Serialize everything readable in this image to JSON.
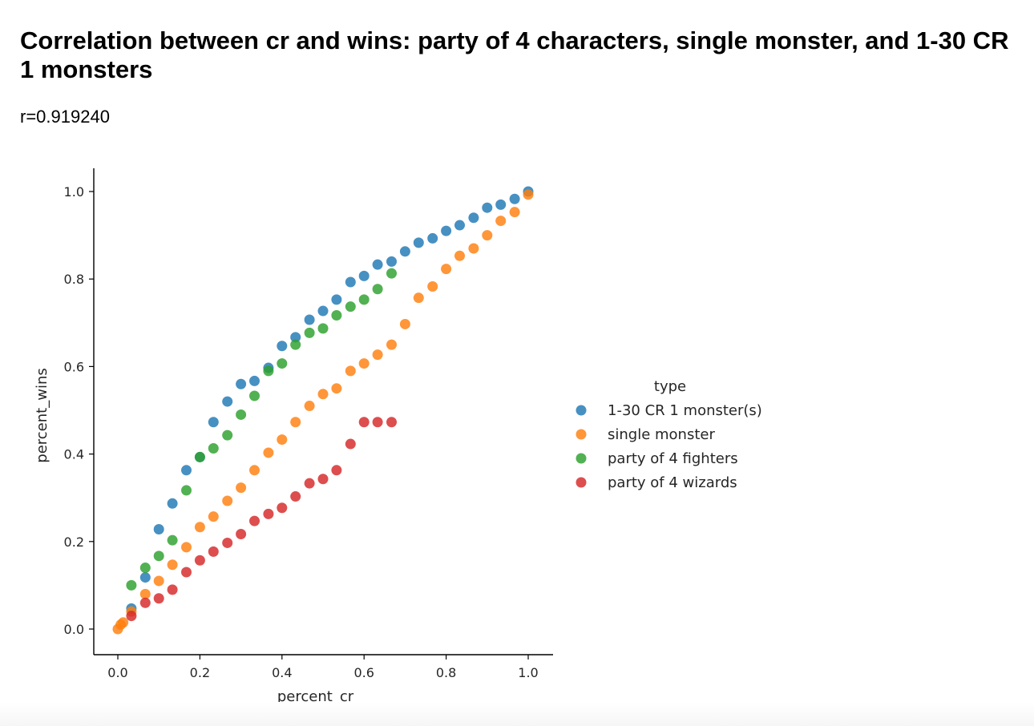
{
  "page": {
    "title": "Correlation between cr and wins: party of 4 characters, single monster, and 1-30 CR 1 monsters",
    "subtitle": "r=0.919240"
  },
  "chart_data": {
    "type": "scatter",
    "title": "",
    "xlabel": "percent_cr",
    "ylabel": "percent_wins",
    "xlim": [
      -0.06,
      1.06
    ],
    "ylim": [
      -0.06,
      1.05
    ],
    "xticks": [
      0.0,
      0.2,
      0.4,
      0.6,
      0.8,
      1.0
    ],
    "yticks": [
      0.0,
      0.2,
      0.4,
      0.6,
      0.8,
      1.0
    ],
    "tick_labels_x": [
      "0.0",
      "0.2",
      "0.4",
      "0.6",
      "0.8",
      "1.0"
    ],
    "tick_labels_y": [
      "0.0",
      "0.2",
      "0.4",
      "0.6",
      "0.8",
      "1.0"
    ],
    "grid": false,
    "legend_title": "type",
    "legend_position": "right",
    "series": [
      {
        "name": "1-30 CR 1 monster(s)",
        "color": "#1f77b4",
        "points": [
          [
            0.033,
            0.047
          ],
          [
            0.067,
            0.118
          ],
          [
            0.1,
            0.228
          ],
          [
            0.133,
            0.287
          ],
          [
            0.167,
            0.363
          ],
          [
            0.2,
            0.393
          ],
          [
            0.233,
            0.473
          ],
          [
            0.267,
            0.52
          ],
          [
            0.3,
            0.56
          ],
          [
            0.333,
            0.567
          ],
          [
            0.367,
            0.597
          ],
          [
            0.4,
            0.647
          ],
          [
            0.433,
            0.667
          ],
          [
            0.467,
            0.707
          ],
          [
            0.5,
            0.727
          ],
          [
            0.533,
            0.753
          ],
          [
            0.567,
            0.793
          ],
          [
            0.6,
            0.807
          ],
          [
            0.633,
            0.833
          ],
          [
            0.667,
            0.84
          ],
          [
            0.7,
            0.863
          ],
          [
            0.733,
            0.883
          ],
          [
            0.767,
            0.893
          ],
          [
            0.8,
            0.91
          ],
          [
            0.833,
            0.923
          ],
          [
            0.867,
            0.94
          ],
          [
            0.9,
            0.963
          ],
          [
            0.933,
            0.97
          ],
          [
            0.967,
            0.983
          ],
          [
            1.0,
            1.0
          ]
        ]
      },
      {
        "name": "single monster",
        "color": "#ff7f0e",
        "points": [
          [
            0.0,
            0.0
          ],
          [
            0.007,
            0.01
          ],
          [
            0.013,
            0.015
          ],
          [
            0.033,
            0.04
          ],
          [
            0.067,
            0.08
          ],
          [
            0.1,
            0.11
          ],
          [
            0.133,
            0.147
          ],
          [
            0.167,
            0.187
          ],
          [
            0.2,
            0.233
          ],
          [
            0.233,
            0.257
          ],
          [
            0.267,
            0.293
          ],
          [
            0.3,
            0.323
          ],
          [
            0.333,
            0.363
          ],
          [
            0.367,
            0.403
          ],
          [
            0.4,
            0.433
          ],
          [
            0.433,
            0.473
          ],
          [
            0.467,
            0.51
          ],
          [
            0.5,
            0.537
          ],
          [
            0.533,
            0.55
          ],
          [
            0.567,
            0.59
          ],
          [
            0.6,
            0.607
          ],
          [
            0.633,
            0.627
          ],
          [
            0.667,
            0.65
          ],
          [
            0.7,
            0.697
          ],
          [
            0.733,
            0.757
          ],
          [
            0.767,
            0.783
          ],
          [
            0.8,
            0.823
          ],
          [
            0.833,
            0.853
          ],
          [
            0.867,
            0.87
          ],
          [
            0.9,
            0.9
          ],
          [
            0.933,
            0.933
          ],
          [
            0.967,
            0.953
          ],
          [
            1.0,
            0.993
          ]
        ]
      },
      {
        "name": "party of 4 fighters",
        "color": "#2ca02c",
        "points": [
          [
            0.033,
            0.1
          ],
          [
            0.067,
            0.14
          ],
          [
            0.1,
            0.167
          ],
          [
            0.133,
            0.203
          ],
          [
            0.167,
            0.317
          ],
          [
            0.2,
            0.393
          ],
          [
            0.233,
            0.413
          ],
          [
            0.267,
            0.443
          ],
          [
            0.3,
            0.49
          ],
          [
            0.333,
            0.533
          ],
          [
            0.367,
            0.59
          ],
          [
            0.4,
            0.607
          ],
          [
            0.433,
            0.65
          ],
          [
            0.467,
            0.677
          ],
          [
            0.5,
            0.687
          ],
          [
            0.533,
            0.717
          ],
          [
            0.567,
            0.737
          ],
          [
            0.6,
            0.753
          ],
          [
            0.633,
            0.777
          ],
          [
            0.667,
            0.813
          ]
        ]
      },
      {
        "name": "party of 4 wizards",
        "color": "#d62728",
        "points": [
          [
            0.033,
            0.03
          ],
          [
            0.067,
            0.06
          ],
          [
            0.1,
            0.07
          ],
          [
            0.133,
            0.09
          ],
          [
            0.167,
            0.13
          ],
          [
            0.2,
            0.157
          ],
          [
            0.233,
            0.177
          ],
          [
            0.267,
            0.197
          ],
          [
            0.3,
            0.217
          ],
          [
            0.333,
            0.247
          ],
          [
            0.367,
            0.263
          ],
          [
            0.4,
            0.277
          ],
          [
            0.433,
            0.303
          ],
          [
            0.467,
            0.333
          ],
          [
            0.5,
            0.343
          ],
          [
            0.533,
            0.363
          ],
          [
            0.567,
            0.423
          ],
          [
            0.6,
            0.473
          ],
          [
            0.633,
            0.473
          ],
          [
            0.667,
            0.473
          ]
        ]
      }
    ]
  }
}
